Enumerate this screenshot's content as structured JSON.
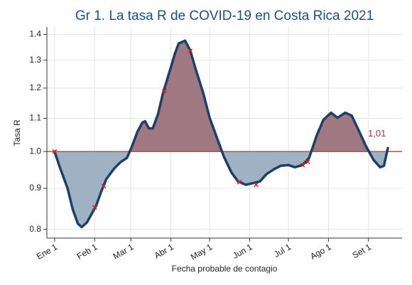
{
  "chart_data": {
    "type": "area-line",
    "title": "Gr 1. La tasa R de COVID-19 en Costa Rica 2021",
    "xlabel": "Fecha probable de contagio",
    "ylabel": "Tasa R",
    "x": [
      0,
      4,
      10,
      14,
      18,
      21,
      25,
      29,
      32,
      36,
      40,
      46,
      51,
      56,
      60,
      64,
      68,
      70,
      73,
      76,
      80,
      84,
      89,
      93,
      96,
      101,
      105,
      109,
      115,
      120,
      126,
      131,
      137,
      142,
      148,
      153,
      159,
      164,
      170,
      175,
      181,
      186,
      192,
      197,
      203,
      208,
      214,
      219,
      225,
      230,
      236,
      241,
      247,
      252,
      255,
      258
    ],
    "values": [
      1.0,
      0.956,
      0.9,
      0.847,
      0.813,
      0.805,
      0.816,
      0.838,
      0.855,
      0.891,
      0.924,
      0.952,
      0.97,
      0.982,
      1.016,
      1.058,
      1.087,
      1.091,
      1.069,
      1.069,
      1.113,
      1.184,
      1.258,
      1.323,
      1.364,
      1.375,
      1.337,
      1.27,
      1.184,
      1.102,
      1.037,
      0.986,
      0.941,
      0.918,
      0.909,
      0.913,
      0.918,
      0.937,
      0.951,
      0.96,
      0.962,
      0.956,
      0.962,
      0.982,
      1.048,
      1.095,
      1.118,
      1.102,
      1.118,
      1.109,
      1.058,
      1.016,
      0.976,
      0.956,
      0.96,
      1.01
    ],
    "color": "#1f3f66",
    "fill_above": "#a07882",
    "fill_below": "#9fb2c4",
    "points": {
      "x": [
        0,
        31,
        38,
        85,
        105,
        143,
        156,
        192,
        196
      ],
      "values": [
        1.0,
        0.852,
        0.906,
        1.19,
        1.335,
        0.916,
        0.909,
        0.962,
        0.971
      ],
      "color": "#d62020"
    },
    "reference": 1,
    "reference_color": "#d94040",
    "annotation": "1,01",
    "annotation_color": "#a0343c",
    "xlim": [
      -6,
      269
    ],
    "xticks": [
      {
        "value": 0,
        "label": "Ene 1"
      },
      {
        "value": 31,
        "label": "Feb 1"
      },
      {
        "value": 59,
        "label": "Mar 1"
      },
      {
        "value": 90,
        "label": "Abr 1"
      },
      {
        "value": 120,
        "label": "May 1"
      },
      {
        "value": 151,
        "label": "Jun 1"
      },
      {
        "value": 181,
        "label": "Jul 1"
      },
      {
        "value": 212,
        "label": "Ago 1"
      },
      {
        "value": 243,
        "label": "Set 1"
      }
    ],
    "ylim": [
      0.78,
      1.43
    ],
    "yticks": [
      0.8,
      0.9,
      {
        "value": 1,
        "label": "1.0"
      },
      1.1,
      1.2,
      1.3,
      1.4
    ],
    "log_y": true,
    "grid": true
  }
}
